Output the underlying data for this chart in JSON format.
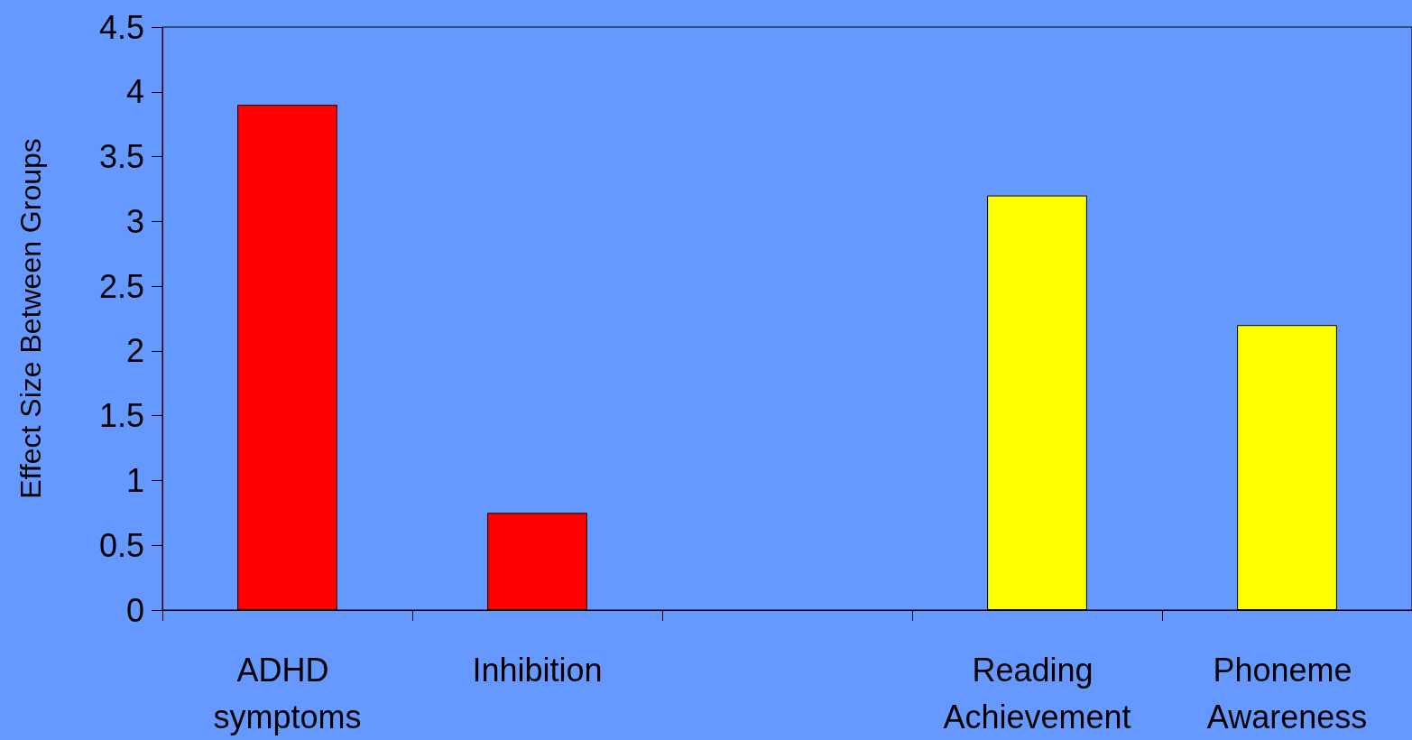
{
  "chart_data": {
    "type": "bar",
    "ylabel": "Effect Size Between Groups",
    "categories": [
      "ADHD symptoms",
      "Inhibition",
      null,
      "Reading Achievement",
      "Phoneme Awareness"
    ],
    "values": [
      3.9,
      0.75,
      null,
      3.2,
      2.2
    ],
    "colors": [
      "#ff0000",
      "#ff0000",
      "#ff0000",
      "#ffff00",
      "#ffff00"
    ],
    "ylim": [
      0,
      4.5
    ],
    "yticks": [
      0,
      0.5,
      1,
      1.5,
      2,
      2.5,
      3,
      3.5,
      4,
      4.5
    ],
    "grid": false
  }
}
